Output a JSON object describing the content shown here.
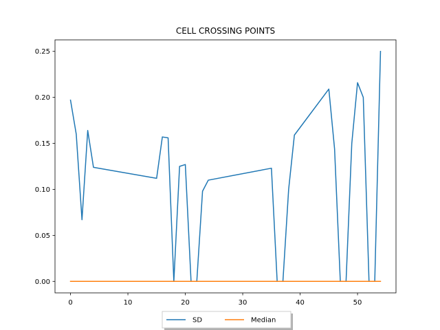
{
  "chart_data": {
    "type": "line",
    "title": "CELL CROSSING POINTS",
    "xlabel": "",
    "ylabel": "",
    "xlim": [
      -2.7,
      56.7
    ],
    "ylim": [
      -0.0125,
      0.2625
    ],
    "xticks": [
      0,
      10,
      20,
      30,
      40,
      50
    ],
    "yticks": [
      0.0,
      0.05,
      0.1,
      0.15,
      0.2,
      0.25
    ],
    "ytick_labels": [
      "0.00",
      "0.05",
      "0.10",
      "0.15",
      "0.20",
      "0.25"
    ],
    "grid": false,
    "legend": {
      "placement": "bottom-center",
      "columns": 2
    },
    "series": [
      {
        "name": "SD",
        "color": "#1f77b4",
        "x": [
          0,
          1,
          2,
          3,
          4,
          15,
          16,
          17,
          18,
          19,
          20,
          21,
          22,
          23,
          24,
          35,
          36,
          37,
          38,
          39,
          45,
          46,
          47,
          48,
          49,
          50,
          51,
          52,
          53,
          54
        ],
        "y": [
          0.197,
          0.16,
          0.067,
          0.164,
          0.124,
          0.112,
          0.157,
          0.156,
          0.0,
          0.125,
          0.127,
          0.0,
          0.0,
          0.098,
          0.11,
          0.123,
          0.0,
          0.0,
          0.1,
          0.159,
          0.209,
          0.144,
          0.0,
          0.0,
          0.15,
          0.216,
          0.2,
          0.0,
          0.0,
          0.25
        ]
      },
      {
        "name": "Median",
        "color": "#ff7f0e",
        "x": [
          0,
          54
        ],
        "y": [
          0.0,
          0.0
        ]
      }
    ]
  }
}
